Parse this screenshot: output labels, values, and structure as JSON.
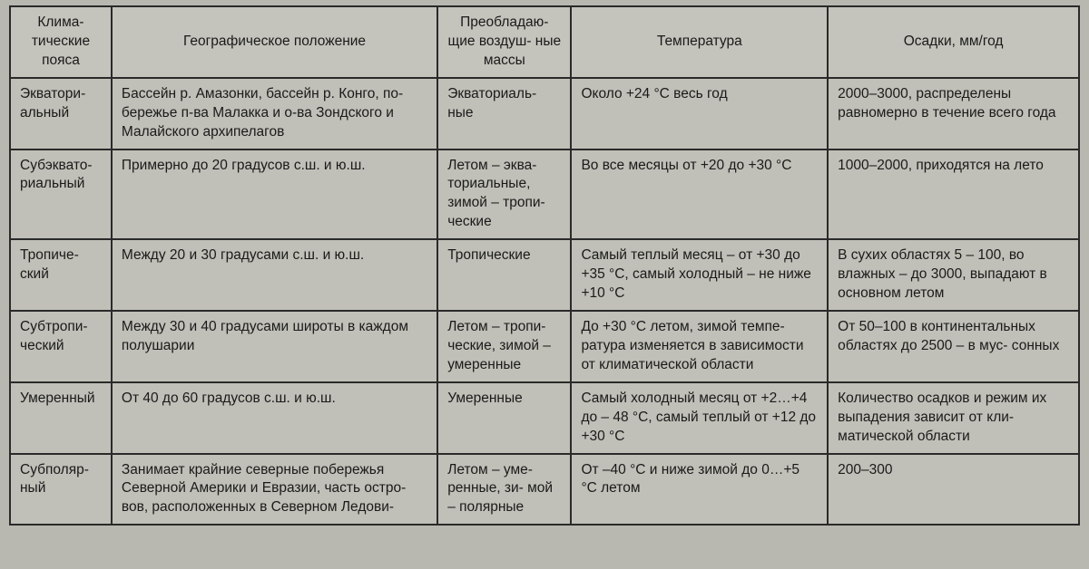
{
  "type": "table",
  "background_color": "#b8b8b0",
  "cell_bg": "#c0c0b8",
  "border_color": "#2a2a2a",
  "text_color": "#1a1a1a",
  "font_family": "Arial",
  "font_size_pt": 12,
  "columns": [
    {
      "key": "zone",
      "label": "Клима-\nтические пояса",
      "width_pct": 9.5,
      "align": "center"
    },
    {
      "key": "geo",
      "label": "Географическое положение",
      "width_pct": 30.5,
      "align": "center"
    },
    {
      "key": "air",
      "label": "Преобладаю-\nщие воздуш-\nные массы",
      "width_pct": 12.5,
      "align": "center"
    },
    {
      "key": "temp",
      "label": "Температура",
      "width_pct": 24,
      "align": "center"
    },
    {
      "key": "prec",
      "label": "Осадки, мм/год",
      "width_pct": 23.5,
      "align": "center"
    }
  ],
  "rows": [
    {
      "zone": "Экватори-\nальный",
      "geo": "Бассейн р. Амазонки, бассейн р. Конго, по-\nбережье п-ва Малакка и о-ва Зондского и Малайского архипелагов",
      "air": "Экваториаль-\nные",
      "temp": "Около +24 °C весь год",
      "prec": "2000–3000, распределены равномерно в течение всего года"
    },
    {
      "zone": "Субэквато-\nриальный",
      "geo": "Примерно до 20 градусов с.ш. и ю.ш.",
      "air": "Летом – эква-\nториальные, зимой – тропи-\nческие",
      "temp": "Во все месяцы от +20 до +30 °C",
      "prec": "1000–2000, приходятся на лето"
    },
    {
      "zone": "Тропиче-\nский",
      "geo": "Между 20 и 30 градусами с.ш. и ю.ш.",
      "air": "Тропические",
      "temp": "Самый теплый месяц – от +30 до +35 °C, самый холодный – не ниже +10 °C",
      "prec": "В сухих областях 5 – 100, во влажных – до 3000, выпадают в основном летом"
    },
    {
      "zone": "Субтропи-\nческий",
      "geo": "Между 30 и 40 градусами широты в каждом полушарии",
      "air": "Летом – тропи-\nческие, зимой – умеренные",
      "temp": "До +30 °C летом, зимой темпе-\nратура изменяется в зависимости от климатической области",
      "prec": "От 50–100 в континентальных областях до 2500 – в мус-\nсонных"
    },
    {
      "zone": "Умеренный",
      "geo": "От 40 до 60 градусов с.ш. и ю.ш.",
      "air": "Умеренные",
      "temp": "Самый холодный месяц от +2…+4 до – 48 °C, самый теплый от +12 до +30 °C",
      "prec": "Количество осадков и режим их выпадения зависит от кли-\nматической области"
    },
    {
      "zone": "Субполяр-\nный",
      "geo": "Занимает крайние северные побережья Северной Америки и Евразии, часть остро-\nвов, расположенных в Северном Ледови-",
      "air": "Летом – уме-\nренные, зи-\nмой – полярные",
      "temp": "От –40 °C и ниже зимой до 0…+5 °C летом",
      "prec": "200–300"
    }
  ]
}
